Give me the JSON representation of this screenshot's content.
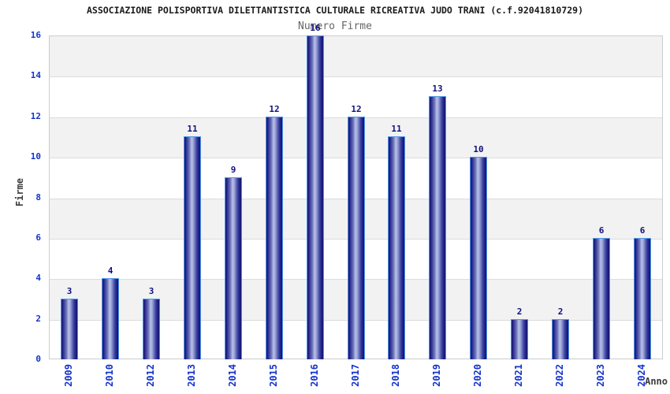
{
  "chart_data": {
    "type": "bar",
    "title": "ASSOCIAZIONE POLISPORTIVA DILETTANTISTICA CULTURALE RICREATIVA JUDO TRANI (c.f.92041810729)",
    "subtitle": "Numero Firme",
    "xlabel": "Anno",
    "ylabel": "Firme",
    "categories": [
      "2009",
      "2010",
      "2012",
      "2013",
      "2014",
      "2015",
      "2016",
      "2017",
      "2018",
      "2019",
      "2020",
      "2021",
      "2022",
      "2023",
      "2024"
    ],
    "values": [
      3,
      4,
      3,
      11,
      9,
      12,
      16,
      12,
      11,
      13,
      10,
      2,
      2,
      6,
      6
    ],
    "ylim": [
      0,
      16
    ],
    "ytick_step": 2,
    "yticks": [
      0,
      2,
      4,
      6,
      8,
      10,
      12,
      14,
      16
    ],
    "grid": "horizontal alternating bands, gridline at every y tick",
    "legend": "none",
    "colors": {
      "tick_label": "#1433cc",
      "value_label": "#10107e",
      "title": "#1a1a1a",
      "subtitle": "#666666",
      "axis_title": "#3c3c3c",
      "band": "#f2f2f2",
      "gridline": "#dcdcdc",
      "plot_border": "#cccccc",
      "bar_border": "#4e96e8",
      "bar_dark": "#14146e",
      "bar_mid": "#2a2a90",
      "bar_light": "#b8c0e8",
      "background": "#ffffff"
    }
  }
}
